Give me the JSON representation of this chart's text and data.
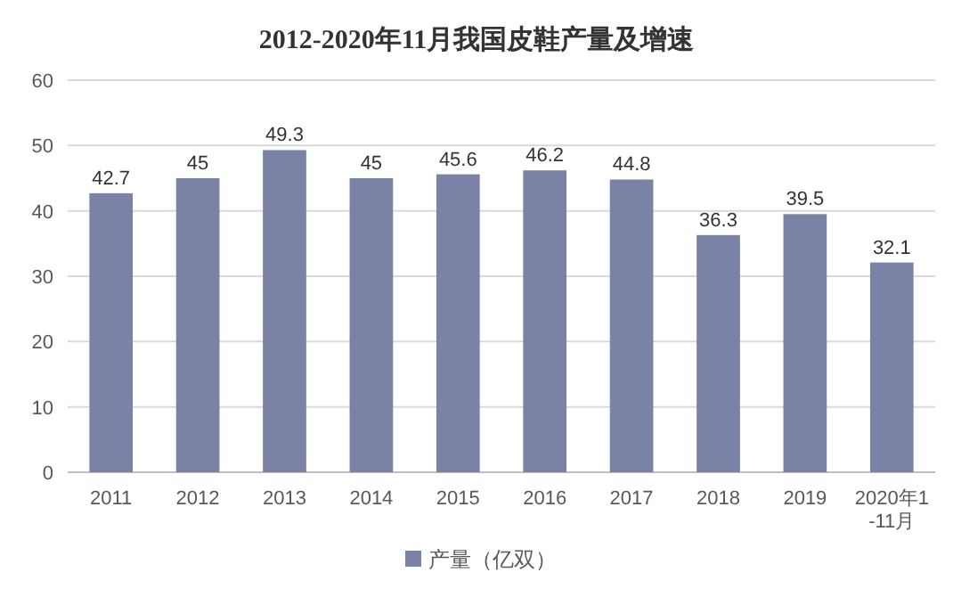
{
  "chart_data": {
    "type": "bar",
    "title": "2012-2020年11月我国皮鞋产量及增速",
    "categories": [
      "2011",
      "2012",
      "2013",
      "2014",
      "2015",
      "2016",
      "2017",
      "2018",
      "2019",
      "2020年1-11月"
    ],
    "series": [
      {
        "name": "产量（亿双）",
        "color": "#7a82a6",
        "values": [
          42.7,
          45,
          49.3,
          45,
          45.6,
          46.2,
          44.8,
          36.3,
          39.5,
          32.1
        ]
      }
    ],
    "ylim": [
      0,
      60
    ],
    "yticks": [
      0,
      10,
      20,
      30,
      40,
      50,
      60
    ],
    "grid": "y",
    "legend": "bottom",
    "data_labels": true
  }
}
